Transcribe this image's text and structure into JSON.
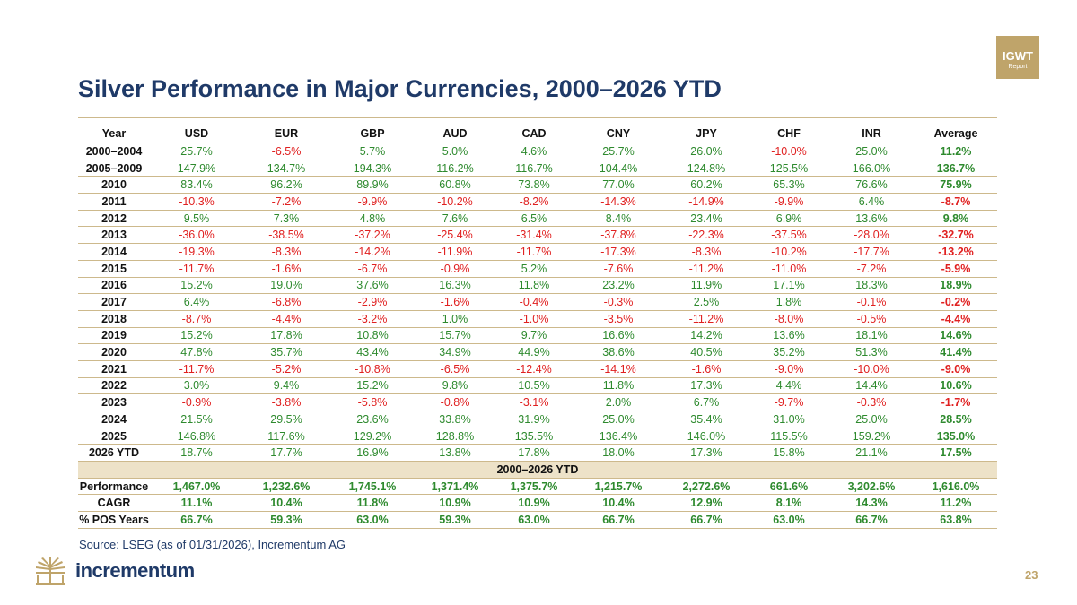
{
  "badge": {
    "line1": "IGWT",
    "line2": "Report"
  },
  "title": "Silver Performance in Major Currencies, 2000–2026 YTD",
  "table": {
    "headers": [
      "Year",
      "USD",
      "EUR",
      "GBP",
      "AUD",
      "CAD",
      "CNY",
      "JPY",
      "CHF",
      "INR",
      "Average"
    ],
    "rows": [
      {
        "year": "2000–2004",
        "values": [
          "25.7%",
          "-6.5%",
          "5.7%",
          "5.0%",
          "4.6%",
          "25.7%",
          "26.0%",
          "-10.0%",
          "25.0%"
        ],
        "average": "11.2%"
      },
      {
        "year": "2005–2009",
        "values": [
          "147.9%",
          "134.7%",
          "194.3%",
          "116.2%",
          "116.7%",
          "104.4%",
          "124.8%",
          "125.5%",
          "166.0%"
        ],
        "average": "136.7%"
      },
      {
        "year": "2010",
        "values": [
          "83.4%",
          "96.2%",
          "89.9%",
          "60.8%",
          "73.8%",
          "77.0%",
          "60.2%",
          "65.3%",
          "76.6%"
        ],
        "average": "75.9%"
      },
      {
        "year": "2011",
        "values": [
          "-10.3%",
          "-7.2%",
          "-9.9%",
          "-10.2%",
          "-8.2%",
          "-14.3%",
          "-14.9%",
          "-9.9%",
          "6.4%"
        ],
        "average": "-8.7%"
      },
      {
        "year": "2012",
        "values": [
          "9.5%",
          "7.3%",
          "4.8%",
          "7.6%",
          "6.5%",
          "8.4%",
          "23.4%",
          "6.9%",
          "13.6%"
        ],
        "average": "9.8%"
      },
      {
        "year": "2013",
        "values": [
          "-36.0%",
          "-38.5%",
          "-37.2%",
          "-25.4%",
          "-31.4%",
          "-37.8%",
          "-22.3%",
          "-37.5%",
          "-28.0%"
        ],
        "average": "-32.7%"
      },
      {
        "year": "2014",
        "values": [
          "-19.3%",
          "-8.3%",
          "-14.2%",
          "-11.9%",
          "-11.7%",
          "-17.3%",
          "-8.3%",
          "-10.2%",
          "-17.7%"
        ],
        "average": "-13.2%"
      },
      {
        "year": "2015",
        "values": [
          "-11.7%",
          "-1.6%",
          "-6.7%",
          "-0.9%",
          "5.2%",
          "-7.6%",
          "-11.2%",
          "-11.0%",
          "-7.2%"
        ],
        "average": "-5.9%"
      },
      {
        "year": "2016",
        "values": [
          "15.2%",
          "19.0%",
          "37.6%",
          "16.3%",
          "11.8%",
          "23.2%",
          "11.9%",
          "17.1%",
          "18.3%"
        ],
        "average": "18.9%"
      },
      {
        "year": "2017",
        "values": [
          "6.4%",
          "-6.8%",
          "-2.9%",
          "-1.6%",
          "-0.4%",
          "-0.3%",
          "2.5%",
          "1.8%",
          "-0.1%"
        ],
        "average": "-0.2%"
      },
      {
        "year": "2018",
        "values": [
          "-8.7%",
          "-4.4%",
          "-3.2%",
          "1.0%",
          "-1.0%",
          "-3.5%",
          "-11.2%",
          "-8.0%",
          "-0.5%"
        ],
        "average": "-4.4%"
      },
      {
        "year": "2019",
        "values": [
          "15.2%",
          "17.8%",
          "10.8%",
          "15.7%",
          "9.7%",
          "16.6%",
          "14.2%",
          "13.6%",
          "18.1%"
        ],
        "average": "14.6%"
      },
      {
        "year": "2020",
        "values": [
          "47.8%",
          "35.7%",
          "43.4%",
          "34.9%",
          "44.9%",
          "38.6%",
          "40.5%",
          "35.2%",
          "51.3%"
        ],
        "average": "41.4%"
      },
      {
        "year": "2021",
        "values": [
          "-11.7%",
          "-5.2%",
          "-10.8%",
          "-6.5%",
          "-12.4%",
          "-14.1%",
          "-1.6%",
          "-9.0%",
          "-10.0%"
        ],
        "average": "-9.0%"
      },
      {
        "year": "2022",
        "values": [
          "3.0%",
          "9.4%",
          "15.2%",
          "9.8%",
          "10.5%",
          "11.8%",
          "17.3%",
          "4.4%",
          "14.4%"
        ],
        "average": "10.6%"
      },
      {
        "year": "2023",
        "values": [
          "-0.9%",
          "-3.8%",
          "-5.8%",
          "-0.8%",
          "-3.1%",
          "2.0%",
          "6.7%",
          "-9.7%",
          "-0.3%"
        ],
        "average": "-1.7%"
      },
      {
        "year": "2024",
        "values": [
          "21.5%",
          "29.5%",
          "23.6%",
          "33.8%",
          "31.9%",
          "25.0%",
          "35.4%",
          "31.0%",
          "25.0%"
        ],
        "average": "28.5%"
      },
      {
        "year": "2025",
        "values": [
          "146.8%",
          "117.6%",
          "129.2%",
          "128.8%",
          "135.5%",
          "136.4%",
          "146.0%",
          "115.5%",
          "159.2%"
        ],
        "average": "135.0%"
      },
      {
        "year": "2026  YTD",
        "values": [
          "18.7%",
          "17.7%",
          "16.9%",
          "13.8%",
          "17.8%",
          "18.0%",
          "17.3%",
          "15.8%",
          "21.1%"
        ],
        "average": "17.5%"
      }
    ],
    "band_label": "2000–2026 YTD",
    "summary": [
      {
        "label": "Performance",
        "values": [
          "1,467.0%",
          "1,232.6%",
          "1,745.1%",
          "1,371.4%",
          "1,375.7%",
          "1,215.7%",
          "2,272.6%",
          "661.6%",
          "3,202.6%"
        ],
        "average": "1,616.0%"
      },
      {
        "label": "CAGR",
        "values": [
          "11.1%",
          "10.4%",
          "11.8%",
          "10.9%",
          "10.9%",
          "10.4%",
          "12.9%",
          "8.1%",
          "14.3%"
        ],
        "average": "11.2%"
      },
      {
        "label": "% POS Years",
        "values": [
          "66.7%",
          "59.3%",
          "63.0%",
          "59.3%",
          "63.0%",
          "66.7%",
          "66.7%",
          "63.0%",
          "66.7%"
        ],
        "average": "63.8%"
      }
    ]
  },
  "source": "Source: LSEG (as of 01/31/2026), Incrementum AG",
  "brand": "incrementum",
  "page_number": "23",
  "colors": {
    "navy": "#1f3a68",
    "gold": "#bfa46a",
    "positive": "#2e8a2e",
    "negative": "#e02020",
    "band": "#ede2c8"
  },
  "icons": {
    "logo": "tree-logo-icon"
  }
}
